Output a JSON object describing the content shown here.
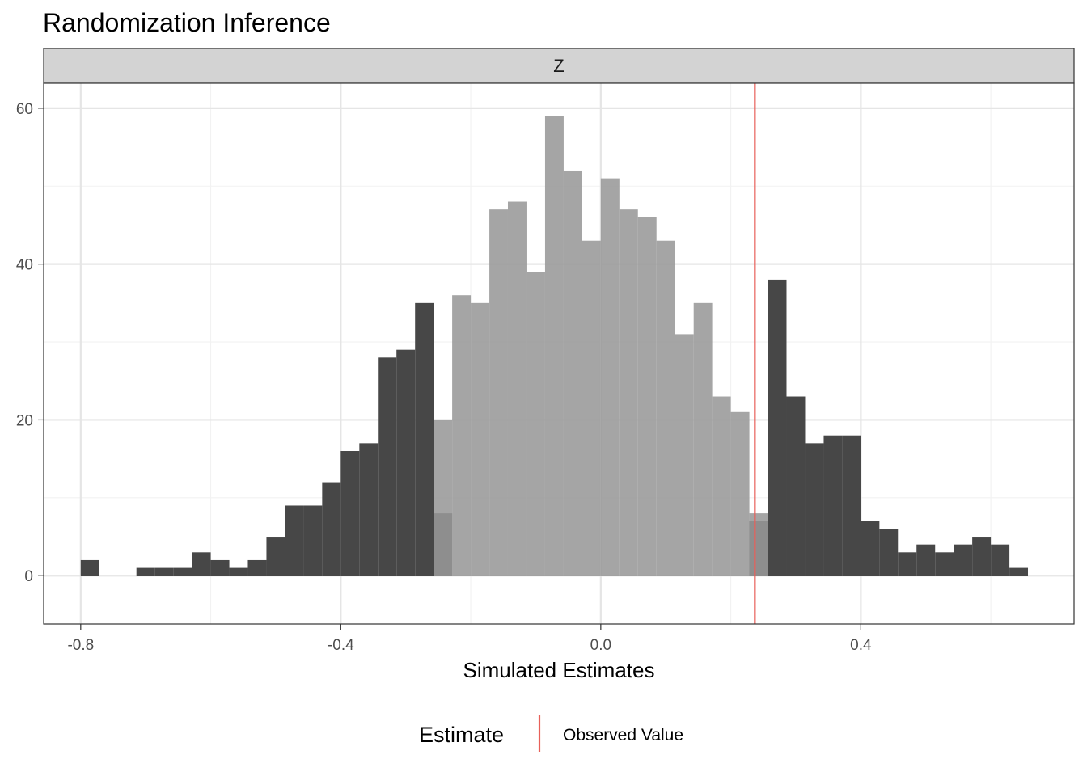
{
  "chart_data": {
    "type": "bar",
    "title": "Randomization Inference",
    "facet": "Z",
    "xlabel": "Simulated Estimates",
    "ylabel": "",
    "xlim": [
      -0.857,
      0.728
    ],
    "ylim": [
      -6.2,
      63.2
    ],
    "x_ticks": [
      -0.8,
      -0.4,
      0.0,
      0.4
    ],
    "x_tick_labels": [
      "-0.8",
      "-0.4",
      "0.0",
      "0.4"
    ],
    "y_ticks": [
      0,
      20,
      40,
      60
    ],
    "y_tick_labels": [
      "0",
      "20",
      "40",
      "60"
    ],
    "grid": true,
    "bin_width": 0.0286,
    "bins_outside": [
      {
        "x0": -0.8,
        "x1": -0.7714,
        "count": 2
      },
      {
        "x0": -0.7143,
        "x1": -0.6857,
        "count": 1
      },
      {
        "x0": -0.6857,
        "x1": -0.6571,
        "count": 1
      },
      {
        "x0": -0.6571,
        "x1": -0.6286,
        "count": 1
      },
      {
        "x0": -0.6286,
        "x1": -0.6,
        "count": 3
      },
      {
        "x0": -0.6,
        "x1": -0.5714,
        "count": 2
      },
      {
        "x0": -0.5714,
        "x1": -0.5429,
        "count": 1
      },
      {
        "x0": -0.5429,
        "x1": -0.5143,
        "count": 2
      },
      {
        "x0": -0.5143,
        "x1": -0.4857,
        "count": 5
      },
      {
        "x0": -0.4857,
        "x1": -0.4571,
        "count": 9
      },
      {
        "x0": -0.4571,
        "x1": -0.4286,
        "count": 9
      },
      {
        "x0": -0.4286,
        "x1": -0.4,
        "count": 12
      },
      {
        "x0": -0.4,
        "x1": -0.3714,
        "count": 16
      },
      {
        "x0": -0.3714,
        "x1": -0.3429,
        "count": 17
      },
      {
        "x0": -0.3429,
        "x1": -0.3143,
        "count": 28
      },
      {
        "x0": -0.3143,
        "x1": -0.2857,
        "count": 29
      },
      {
        "x0": -0.2857,
        "x1": -0.2571,
        "count": 35
      },
      {
        "x0": -0.2571,
        "x1": -0.2286,
        "count": 8
      },
      {
        "x0": 0.2286,
        "x1": 0.2571,
        "count": 7
      },
      {
        "x0": 0.2571,
        "x1": 0.2857,
        "count": 38
      },
      {
        "x0": 0.2857,
        "x1": 0.3143,
        "count": 23
      },
      {
        "x0": 0.3143,
        "x1": 0.3429,
        "count": 17
      },
      {
        "x0": 0.3429,
        "x1": 0.3714,
        "count": 18
      },
      {
        "x0": 0.3714,
        "x1": 0.4,
        "count": 18
      },
      {
        "x0": 0.4,
        "x1": 0.4286,
        "count": 7
      },
      {
        "x0": 0.4286,
        "x1": 0.4571,
        "count": 6
      },
      {
        "x0": 0.4571,
        "x1": 0.4857,
        "count": 3
      },
      {
        "x0": 0.4857,
        "x1": 0.5143,
        "count": 4
      },
      {
        "x0": 0.5143,
        "x1": 0.5429,
        "count": 3
      },
      {
        "x0": 0.5429,
        "x1": 0.5714,
        "count": 4
      },
      {
        "x0": 0.5714,
        "x1": 0.6,
        "count": 5
      },
      {
        "x0": 0.6,
        "x1": 0.6286,
        "count": 4
      },
      {
        "x0": 0.6286,
        "x1": 0.6571,
        "count": 1
      }
    ],
    "bins_inside": [
      {
        "x0": -0.2571,
        "x1": -0.2286,
        "count": 20
      },
      {
        "x0": -0.2286,
        "x1": -0.2,
        "count": 36
      },
      {
        "x0": -0.2,
        "x1": -0.1714,
        "count": 35
      },
      {
        "x0": -0.1714,
        "x1": -0.1429,
        "count": 47
      },
      {
        "x0": -0.1429,
        "x1": -0.1143,
        "count": 48
      },
      {
        "x0": -0.1143,
        "x1": -0.0857,
        "count": 39
      },
      {
        "x0": -0.0857,
        "x1": -0.0571,
        "count": 59
      },
      {
        "x0": -0.0571,
        "x1": -0.0286,
        "count": 52
      },
      {
        "x0": -0.0286,
        "x1": 0.0,
        "count": 43
      },
      {
        "x0": 0.0,
        "x1": 0.0286,
        "count": 51
      },
      {
        "x0": 0.0286,
        "x1": 0.0571,
        "count": 47
      },
      {
        "x0": 0.0571,
        "x1": 0.0857,
        "count": 46
      },
      {
        "x0": 0.0857,
        "x1": 0.1143,
        "count": 43
      },
      {
        "x0": 0.1143,
        "x1": 0.1429,
        "count": 31
      },
      {
        "x0": 0.1429,
        "x1": 0.1714,
        "count": 35
      },
      {
        "x0": 0.1714,
        "x1": 0.2,
        "count": 23
      },
      {
        "x0": 0.2,
        "x1": 0.2286,
        "count": 21
      },
      {
        "x0": 0.2286,
        "x1": 0.2571,
        "count": 8
      }
    ],
    "observed_value": 0.237,
    "legend": {
      "title": "Estimate",
      "label": "Observed Value",
      "position": "bottom"
    },
    "colors": {
      "outside_fill": "#474747",
      "inside_fill": "#999999",
      "inside_opacity": 0.88,
      "observed_line": "#e8605a",
      "strip_fill": "#d3d3d3",
      "grid_major": "#e5e5e5",
      "grid_minor": "#f2f2f2",
      "panel_border": "#333333"
    }
  }
}
